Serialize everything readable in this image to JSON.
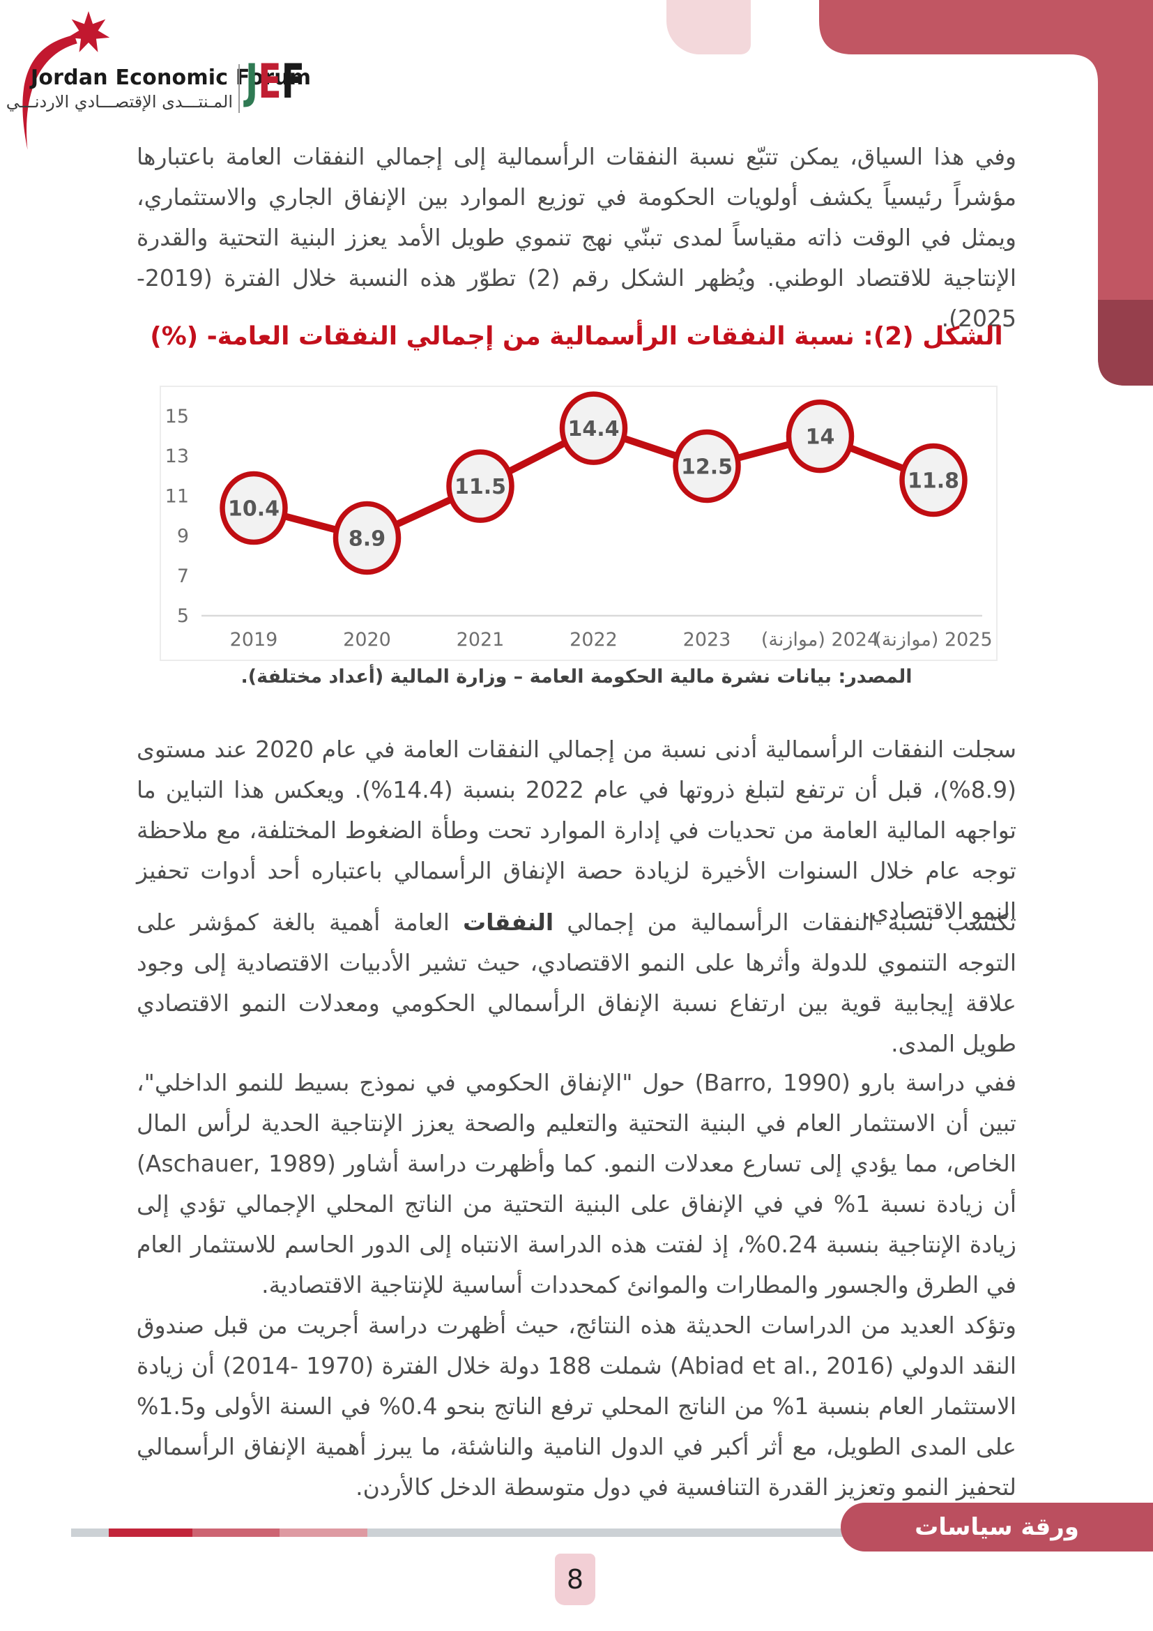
{
  "header": {
    "logo": {
      "wordmark": "Jordan Economic Forum",
      "arabic_name": "المـنتـــدى الإقتصـــادي الاردنـــي",
      "monogram": {
        "j": "J",
        "e": "E",
        "f": "F"
      }
    }
  },
  "paragraphs": {
    "p1": "وفي هذا السياق، يمكن تتبّع نسبة النفقات الرأسمالية إلى إجمالي النفقات العامة باعتبارها مؤشراً رئيسياً يكشف أولويات الحكومة في توزيع الموارد بين الإنفاق الجاري والاستثماري، ويمثل في الوقت ذاته مقياساً لمدى تبنّي نهج تنموي طويل الأمد يعزز البنية التحتية والقدرة الإنتاجية للاقتصاد الوطني. ويُظهر الشكل رقم (2) تطوّر هذه النسبة خلال الفترة (2019- 2025).",
    "p2": "سجلت النفقات الرأسمالية أدنى نسبة من إجمالي النفقات العامة في عام 2020 عند مستوى (8.9%)، قبل أن ترتفع لتبلغ ذروتها في عام 2022 بنسبة (14.4%). ويعكس هذا التباين ما تواجهه المالية العامة من تحديات في إدارة الموارد تحت وطأة الضغوط المختلفة، مع ملاحظة توجه عام خلال السنوات الأخيرة لزيادة حصة الإنفاق الرأسمالي باعتباره أحد أدوات تحفيز النمو الاقتصادي.",
    "p3_part1": "تكتسب نسبة النفقات الرأسمالية من إجمالي ",
    "p3_bold": "النفقات",
    "p3_part2": " العامة أهمية بالغة كمؤشر على التوجه التنموي للدولة وأثرها على النمو الاقتصادي، حيث تشير الأدبيات الاقتصادية إلى وجود علاقة إيجابية قوية بين ارتفاع نسبة الإنفاق الرأسمالي الحكومي ومعدلات النمو الاقتصادي طويل المدى.",
    "p4": "ففي دراسة بارو (Barro, 1990) حول \"الإنفاق الحكومي في نموذج بسيط للنمو الداخلي\"، تبين أن الاستثمار العام في البنية التحتية والتعليم والصحة يعزز الإنتاجية الحدية لرأس المال الخاص، مما يؤدي إلى تسارع معدلات النمو. كما وأظهرت دراسة أشاور (Aschauer, 1989) أن زيادة نسبة 1% في في الإنفاق على البنية التحتية من الناتج المحلي الإجمالي تؤدي إلى زيادة الإنتاجية بنسبة 0.24%، إذ لفتت هذه الدراسة الانتباه إلى الدور الحاسم للاستثمار العام في الطرق والجسور والمطارات والموانئ كمحددات أساسية للإنتاجية الاقتصادية.",
    "p5": "وتؤكد العديد من الدراسات الحديثة هذه النتائج، حيث أظهرت دراسة أجريت من قبل صندوق النقد الدولي (Abiad et al., 2016) شملت 188 دولة خلال الفترة (1970 -2014) أن زيادة الاستثمار العام بنسبة 1% من الناتج المحلي ترفع الناتج بنحو 0.4% في السنة الأولى و1.5% على المدى الطويل، مع أثر أكبر في الدول النامية والناشئة، ما يبرز أهمية الإنفاق الرأسمالي لتحفيز النمو وتعزيز القدرة التنافسية في دول متوسطة الدخل كالأردن."
  },
  "figure": {
    "title": "الشكل (2): نسبة النفقات الرأسمالية من إجمالي النفقات العامة- (%)",
    "source": "المصدر: بيانات نشرة مالية الحكومة العامة – وزارة المالية (أعداد مختلفة)."
  },
  "chart_data": {
    "type": "line",
    "title": "الشكل (2): نسبة النفقات الرأسمالية من إجمالي النفقات العامة- (%)",
    "categories": [
      "2019",
      "2020",
      "2021",
      "2022",
      "2023",
      "2024 (موازنة)",
      "2025 (موازنة)"
    ],
    "values": [
      10.4,
      8.9,
      11.5,
      14.4,
      12.5,
      14,
      11.8
    ],
    "value_labels": [
      "10.4",
      "8.9",
      "11.5",
      "14.4",
      "12.5",
      "14",
      "11.8"
    ],
    "ylim": [
      5,
      15
    ],
    "yticks": [
      15,
      13,
      11,
      9,
      7,
      5
    ],
    "xlabel": "",
    "ylabel": "",
    "grid": "baseline-only",
    "legend": "none",
    "marker_style": "red-ring-circle-with-value-label"
  },
  "footer": {
    "badge_label": "ورقة سياسات",
    "page_number": "8"
  },
  "icons": {
    "jef-star-icon": "seven-pointed-star",
    "jef-swoosh-icon": "crescent-curve"
  },
  "colors": {
    "accent_red": "#c3101c",
    "chart_red": "#c00d12",
    "band_red": "#c15663",
    "band_maroon": "#963f4c",
    "ribbon_pink": "#f3d8db",
    "footer_badge": "#bb4f5f",
    "page_badge_pink": "#f2cfd5",
    "bar_gray": "#ccd1d5",
    "bar_seg_dark": "#c2253a",
    "bar_seg_mid": "#cd6472",
    "bar_seg_light": "#de9aa2",
    "text_dark": "#4d4d4d",
    "axis_gray": "#6e6e6e",
    "logo_green": "#2f7a53",
    "logo_red": "#c01e32",
    "logo_black": "#1a1a1a",
    "star_red": "#c2182f"
  }
}
